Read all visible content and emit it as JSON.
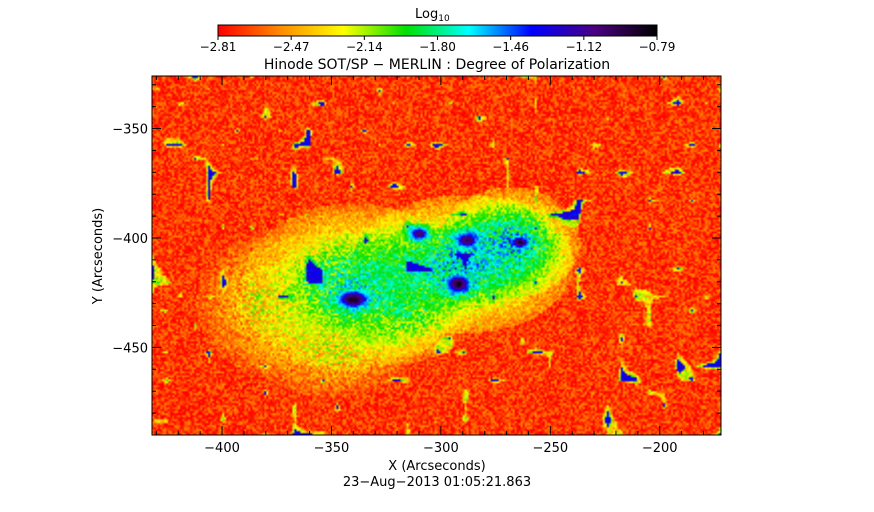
{
  "chart_data": {
    "type": "heatmap",
    "title": "Hinode SOT/SP − MERLIN : Degree of Polarization",
    "xlabel": "X (Arcseconds)",
    "ylabel": "Y (Arcseconds)",
    "xlim": [
      -432,
      -172
    ],
    "ylim": [
      -490,
      -326
    ],
    "x_major_ticks": [
      -400,
      -350,
      -300,
      -250,
      -200
    ],
    "x_tick_labels": [
      "−400",
      "−350",
      "−300",
      "−250",
      "−200"
    ],
    "y_major_ticks": [
      -350,
      -400,
      -450
    ],
    "y_tick_labels": [
      "−350",
      "−400",
      "−450"
    ],
    "timestamp": "23−Aug−2013 01:05:21.863",
    "colorbar": {
      "label_base": "Log",
      "label_sub": "10",
      "scale": "log10",
      "range": [
        -2.81,
        -0.79
      ],
      "tick_labels": [
        "−2.81",
        "−2.47",
        "−2.14",
        "−1.80",
        "−1.46",
        "−1.12",
        "−0.79"
      ],
      "colormap": [
        "#ff0000",
        "#ff8c00",
        "#ffff00",
        "#00e000",
        "#00ffff",
        "#0000ff",
        "#4b0082",
        "#000000"
      ]
    },
    "background_level": -2.7,
    "features": [
      {
        "kind": "sunspot",
        "x": -340,
        "y": -428,
        "rx": 10,
        "ry": 6,
        "level": -0.85
      },
      {
        "kind": "sunspot",
        "x": -292,
        "y": -421,
        "rx": 8,
        "ry": 6,
        "level": -0.85
      },
      {
        "kind": "sunspot",
        "x": -264,
        "y": -402,
        "rx": 6,
        "ry": 4,
        "level": -0.88
      },
      {
        "kind": "sunspot",
        "x": -288,
        "y": -401,
        "rx": 7,
        "ry": 5,
        "level": -0.95
      },
      {
        "kind": "sunspot",
        "x": -310,
        "y": -398,
        "rx": 6,
        "ry": 4,
        "level": -1.0
      },
      {
        "kind": "plage",
        "x": -340,
        "y": -422,
        "rx": 40,
        "ry": 30,
        "level": -1.8
      },
      {
        "kind": "plage",
        "x": -290,
        "y": -412,
        "rx": 40,
        "ry": 25,
        "level": -1.7
      },
      {
        "kind": "plage",
        "x": -268,
        "y": -402,
        "rx": 25,
        "ry": 20,
        "level": -1.7
      },
      {
        "kind": "plage",
        "x": -318,
        "y": -432,
        "rx": 25,
        "ry": 20,
        "level": -2.0
      },
      {
        "kind": "plage",
        "x": -380,
        "y": -430,
        "rx": 25,
        "ry": 25,
        "level": -2.3
      },
      {
        "kind": "plage",
        "x": -350,
        "y": -450,
        "rx": 30,
        "ry": 18,
        "level": -2.3
      }
    ]
  }
}
